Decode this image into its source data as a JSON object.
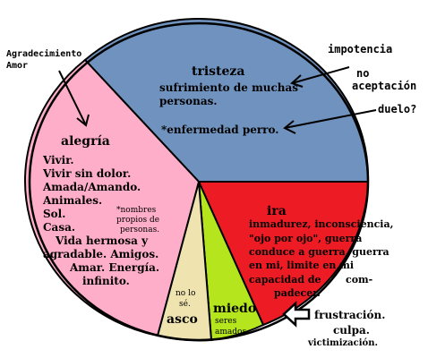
{
  "sectors": [
    {
      "id": "tristeza",
      "color": "#7092be"
    },
    {
      "id": "ira",
      "color": "#ed1c24"
    },
    {
      "id": "miedo",
      "color": "#b5e61d"
    },
    {
      "id": "asco",
      "color": "#efe4b0"
    },
    {
      "id": "alegria",
      "color": "#ffaec9"
    }
  ],
  "tristeza": {
    "title": "tristeza",
    "line1": "sufrimiento de muchas",
    "line2": "personas.",
    "line3": "*enfermedad perro."
  },
  "ira": {
    "title": "ira",
    "line1": "inmadurez, inconsciencia,",
    "line2": "\"ojo por ojo\", guerra",
    "line3": "conduce a guerra, guerra",
    "line4": "en mi, limite en mi",
    "line5": "capacidad de",
    "line5b": "com-",
    "line6": "padecer."
  },
  "miedo": {
    "title": "miedo",
    "line1": "seres",
    "line2": "amados"
  },
  "asco": {
    "title": "asco",
    "line1": "no lo",
    "line2": "sé."
  },
  "alegria": {
    "title": "alegría",
    "items": [
      "Vivir.",
      "Vivir sin dolor.",
      "Amada/Amando.",
      "Animales.",
      "Sol.",
      "Casa.",
      "Vida hermosa y",
      "agradable. Amigos.",
      "Amar. Energía.",
      "infinito."
    ],
    "note1": "*nombres",
    "note2": "propios de",
    "note3": "personas."
  },
  "outside": {
    "agradecimiento": "Agradecimiento",
    "amor": "Amor",
    "impotencia": "impotencia",
    "no": "no",
    "aceptacion": "aceptación",
    "duelo": "duelo?",
    "frustracion": "frustración.",
    "culpa": "culpa.",
    "victimizacion": "victimización."
  }
}
